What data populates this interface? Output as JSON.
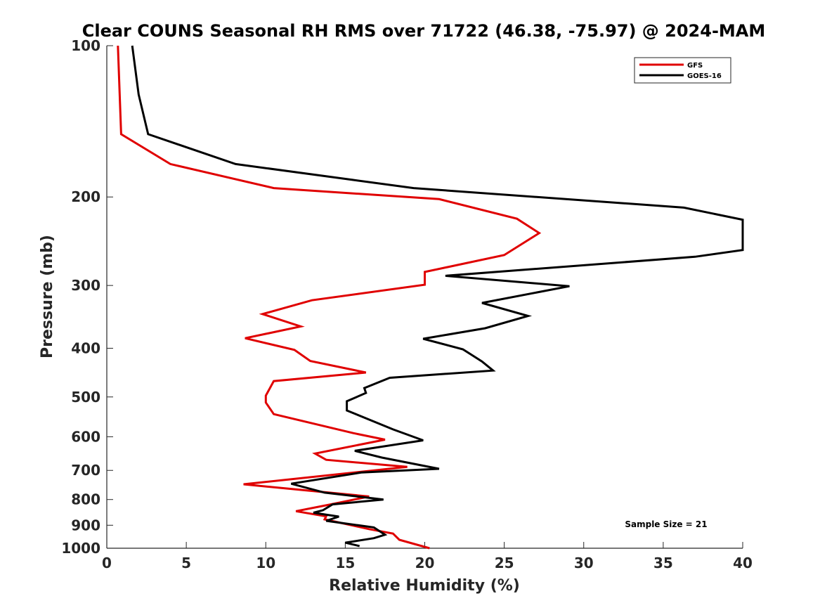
{
  "chart_data": {
    "type": "line",
    "title": "Clear COUNS Seasonal RH RMS over 71722 (46.38, -75.97) @ 2024-MAM",
    "xlabel": "Relative Humidity (%)",
    "ylabel": "Pressure (mb)",
    "xlim": [
      0,
      40
    ],
    "ylim": [
      100,
      1000
    ],
    "yscale": "log",
    "yreverse": true,
    "xticks": [
      0,
      5,
      10,
      15,
      20,
      25,
      30,
      35,
      40
    ],
    "yticks": [
      100,
      200,
      300,
      400,
      500,
      600,
      700,
      800,
      900,
      1000
    ],
    "grid": false,
    "legend_position": "top-right",
    "annotation": "Sample Size = 21",
    "series": [
      {
        "name": "GFS",
        "color": "#e00000",
        "points": [
          [
            0.7,
            100
          ],
          [
            0.9,
            150
          ],
          [
            4.0,
            172
          ],
          [
            10.5,
            192
          ],
          [
            20.9,
            202
          ],
          [
            25.8,
            221
          ],
          [
            27.2,
            236
          ],
          [
            25.0,
            261
          ],
          [
            20.0,
            282
          ],
          [
            20.0,
            299
          ],
          [
            12.9,
            321
          ],
          [
            9.8,
            342
          ],
          [
            12.2,
            362
          ],
          [
            8.7,
            382
          ],
          [
            11.8,
            403
          ],
          [
            12.8,
            424
          ],
          [
            16.3,
            447
          ],
          [
            10.5,
            465
          ],
          [
            10.0,
            497
          ],
          [
            10.0,
            513
          ],
          [
            10.5,
            541
          ],
          [
            15.5,
            590
          ],
          [
            17.5,
            608
          ],
          [
            13.1,
            648
          ],
          [
            13.8,
            667
          ],
          [
            18.9,
            689
          ],
          [
            8.6,
            746
          ],
          [
            16.5,
            789
          ],
          [
            14.0,
            819
          ],
          [
            11.9,
            844
          ],
          [
            13.8,
            864
          ],
          [
            13.7,
            876
          ],
          [
            16.5,
            916
          ],
          [
            18.0,
            935
          ],
          [
            18.4,
            962
          ],
          [
            20.3,
            1000
          ]
        ]
      },
      {
        "name": "GOES-16",
        "color": "#000000",
        "points": [
          [
            1.6,
            100
          ],
          [
            2.0,
            125
          ],
          [
            2.6,
            150
          ],
          [
            8.1,
            172
          ],
          [
            19.3,
            192
          ],
          [
            36.3,
            210
          ],
          [
            40.0,
            222
          ],
          [
            40.0,
            255
          ],
          [
            37.0,
            263
          ],
          [
            21.3,
            287
          ],
          [
            29.1,
            301
          ],
          [
            23.6,
            325
          ],
          [
            26.5,
            345
          ],
          [
            23.8,
            365
          ],
          [
            19.9,
            383
          ],
          [
            22.4,
            402
          ],
          [
            23.6,
            425
          ],
          [
            24.3,
            443
          ],
          [
            17.8,
            458
          ],
          [
            16.2,
            480
          ],
          [
            16.3,
            491
          ],
          [
            15.1,
            510
          ],
          [
            15.1,
            532
          ],
          [
            18.0,
            580
          ],
          [
            19.9,
            610
          ],
          [
            15.6,
            640
          ],
          [
            17.3,
            660
          ],
          [
            20.9,
            695
          ],
          [
            16.0,
            707
          ],
          [
            11.6,
            744
          ],
          [
            13.7,
            775
          ],
          [
            17.4,
            800
          ],
          [
            14.2,
            818
          ],
          [
            13.6,
            840
          ],
          [
            13.0,
            850
          ],
          [
            14.6,
            865
          ],
          [
            13.8,
            882
          ],
          [
            16.8,
            909
          ],
          [
            17.5,
            940
          ],
          [
            16.8,
            955
          ],
          [
            15.0,
            975
          ],
          [
            15.9,
            990
          ]
        ]
      }
    ]
  }
}
